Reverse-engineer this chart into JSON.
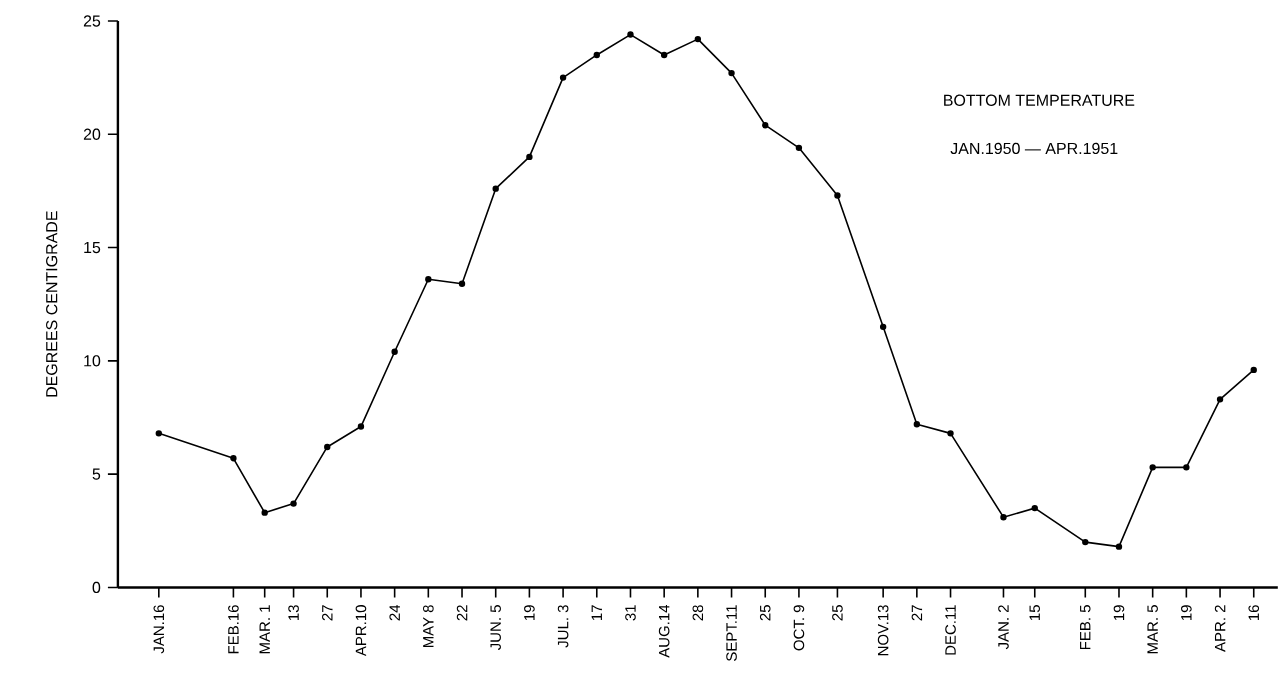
{
  "chart_data": {
    "type": "line",
    "title": "BOTTOM TEMPERATURE",
    "subtitle": "JAN.1950 — APR.1951",
    "ylabel": "DEGREES CENTIGRADE",
    "x": [
      "1950-01-16",
      "1950-02-16",
      "1950-03-01",
      "1950-03-13",
      "1950-03-27",
      "1950-04-10",
      "1950-04-24",
      "1950-05-08",
      "1950-05-22",
      "1950-06-05",
      "1950-06-19",
      "1950-07-03",
      "1950-07-17",
      "1950-07-31",
      "1950-08-14",
      "1950-08-28",
      "1950-09-11",
      "1950-09-25",
      "1950-10-09",
      "1950-10-25",
      "1950-11-13",
      "1950-11-27",
      "1950-12-11",
      "1951-01-02",
      "1951-01-15",
      "1951-02-05",
      "1951-02-19",
      "1951-03-05",
      "1951-03-19",
      "1951-04-02",
      "1951-04-16"
    ],
    "values": [
      6.8,
      5.7,
      3.3,
      3.7,
      6.2,
      7.1,
      10.4,
      13.6,
      13.4,
      17.6,
      19.0,
      22.5,
      23.5,
      24.4,
      23.5,
      24.2,
      22.7,
      20.4,
      19.4,
      17.3,
      11.5,
      7.2,
      6.8,
      3.1,
      3.5,
      2.0,
      1.8,
      5.3,
      5.3,
      8.3,
      9.6
    ],
    "color": "#000000",
    "marker": "circle",
    "line_style": "solid",
    "xlim": [
      "1949-12-30",
      "1951-04-26"
    ],
    "ylim": [
      0,
      25
    ],
    "yticks": [
      0,
      5,
      10,
      15,
      20,
      25
    ],
    "xticks": [
      {
        "value": "1950-01-16",
        "label": "JAN.16"
      },
      {
        "value": "1950-02-16",
        "label": "FEB.16"
      },
      {
        "value": "1950-03-01",
        "label": "MAR. 1"
      },
      {
        "value": "1950-03-13",
        "label": "13"
      },
      {
        "value": "1950-03-27",
        "label": "27"
      },
      {
        "value": "1950-04-10",
        "label": "APR.10"
      },
      {
        "value": "1950-04-24",
        "label": "24"
      },
      {
        "value": "1950-05-08",
        "label": "MAY 8"
      },
      {
        "value": "1950-05-22",
        "label": "22"
      },
      {
        "value": "1950-06-05",
        "label": "JUN. 5"
      },
      {
        "value": "1950-06-19",
        "label": "19"
      },
      {
        "value": "1950-07-03",
        "label": "JUL. 3"
      },
      {
        "value": "1950-07-17",
        "label": "17"
      },
      {
        "value": "1950-07-31",
        "label": "31"
      },
      {
        "value": "1950-08-14",
        "label": "AUG.14"
      },
      {
        "value": "1950-08-28",
        "label": "28"
      },
      {
        "value": "1950-09-11",
        "label": "SEPT.11"
      },
      {
        "value": "1950-09-25",
        "label": "25"
      },
      {
        "value": "1950-10-09",
        "label": "OCT. 9"
      },
      {
        "value": "1950-10-25",
        "label": "25"
      },
      {
        "value": "1950-11-13",
        "label": "NOV.13"
      },
      {
        "value": "1950-11-27",
        "label": "27"
      },
      {
        "value": "1950-12-11",
        "label": "DEC.11"
      },
      {
        "value": "1951-01-02",
        "label": "JAN. 2"
      },
      {
        "value": "1951-01-15",
        "label": "15"
      },
      {
        "value": "1951-02-05",
        "label": "FEB. 5"
      },
      {
        "value": "1951-02-19",
        "label": "19"
      },
      {
        "value": "1951-03-05",
        "label": "MAR. 5"
      },
      {
        "value": "1951-03-19",
        "label": "19"
      },
      {
        "value": "1951-04-02",
        "label": "APR. 2"
      },
      {
        "value": "1951-04-16",
        "label": "16"
      }
    ]
  }
}
